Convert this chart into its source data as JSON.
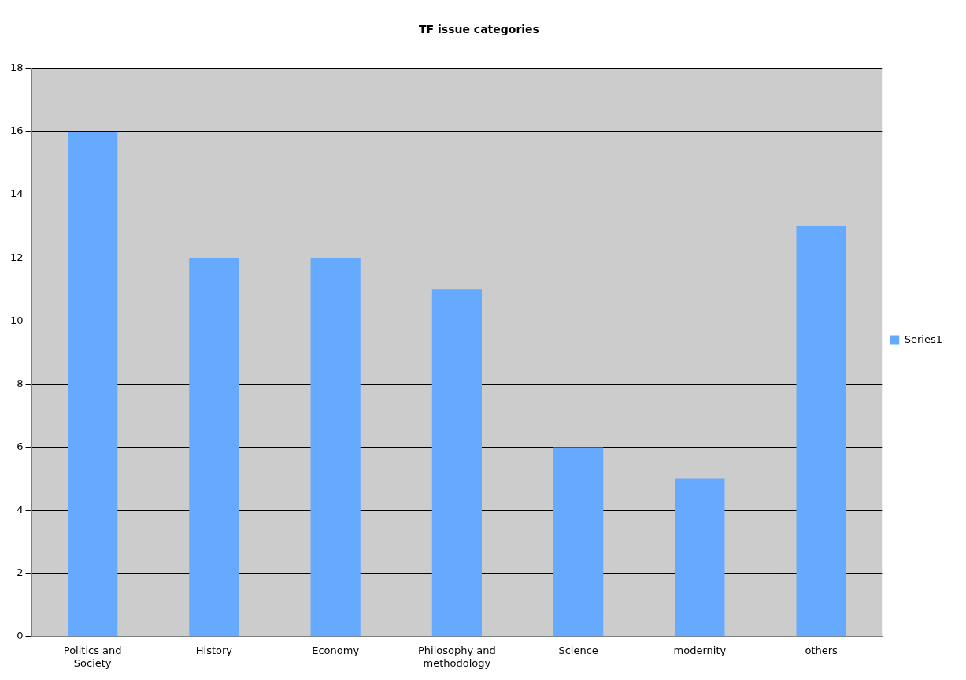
{
  "chart_data": {
    "type": "bar",
    "title": "TF issue categories",
    "categories": [
      "Politics and Society",
      "History",
      "Economy",
      "Philosophy and methodology",
      "Science",
      "modernity",
      "others"
    ],
    "series": [
      {
        "name": "Series1",
        "color": "#66aaff",
        "values": [
          16,
          12,
          12,
          11,
          6,
          5,
          13
        ]
      }
    ],
    "ylim": [
      0,
      18
    ],
    "yticks": [
      0,
      2,
      4,
      6,
      8,
      10,
      12,
      14,
      16,
      18
    ],
    "grid": "y",
    "legend": "right"
  }
}
